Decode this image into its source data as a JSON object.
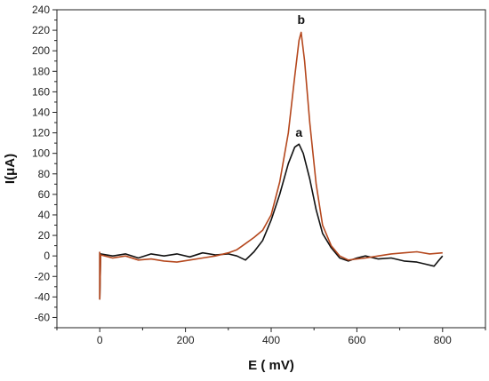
{
  "chart_data": {
    "type": "line",
    "xlabel": "E ( mV)",
    "ylabel": "I(μA)",
    "xlim": [
      -100,
      900
    ],
    "ylim": [
      -70,
      240
    ],
    "x_ticks": [
      0,
      200,
      400,
      600,
      800
    ],
    "y_ticks": [
      -60,
      -40,
      -20,
      0,
      20,
      40,
      60,
      80,
      100,
      120,
      140,
      160,
      180,
      200,
      220,
      240
    ],
    "grid": false,
    "series": [
      {
        "name": "a",
        "color": "#111111",
        "points": [
          [
            0,
            4
          ],
          [
            0,
            -42
          ],
          [
            2,
            2
          ],
          [
            30,
            0
          ],
          [
            60,
            2
          ],
          [
            90,
            -2
          ],
          [
            120,
            2
          ],
          [
            150,
            0
          ],
          [
            180,
            2
          ],
          [
            210,
            -1
          ],
          [
            240,
            3
          ],
          [
            270,
            1
          ],
          [
            300,
            2
          ],
          [
            320,
            0
          ],
          [
            340,
            -4
          ],
          [
            360,
            4
          ],
          [
            380,
            15
          ],
          [
            400,
            35
          ],
          [
            420,
            60
          ],
          [
            440,
            90
          ],
          [
            455,
            106
          ],
          [
            465,
            109
          ],
          [
            475,
            100
          ],
          [
            490,
            75
          ],
          [
            505,
            45
          ],
          [
            520,
            22
          ],
          [
            540,
            8
          ],
          [
            560,
            -2
          ],
          [
            580,
            -5
          ],
          [
            600,
            -2
          ],
          [
            620,
            0
          ],
          [
            650,
            -3
          ],
          [
            680,
            -2
          ],
          [
            710,
            -5
          ],
          [
            740,
            -6
          ],
          [
            760,
            -8
          ],
          [
            780,
            -10
          ],
          [
            790,
            -5
          ],
          [
            800,
            0
          ]
        ]
      },
      {
        "name": "b",
        "color": "#b5481e",
        "points": [
          [
            0,
            4
          ],
          [
            0,
            -42
          ],
          [
            2,
            1
          ],
          [
            30,
            -2
          ],
          [
            60,
            0
          ],
          [
            90,
            -4
          ],
          [
            120,
            -3
          ],
          [
            150,
            -5
          ],
          [
            180,
            -6
          ],
          [
            210,
            -4
          ],
          [
            240,
            -2
          ],
          [
            270,
            0
          ],
          [
            300,
            3
          ],
          [
            320,
            6
          ],
          [
            340,
            12
          ],
          [
            360,
            18
          ],
          [
            380,
            25
          ],
          [
            400,
            40
          ],
          [
            420,
            72
          ],
          [
            440,
            120
          ],
          [
            455,
            175
          ],
          [
            465,
            210
          ],
          [
            470,
            218
          ],
          [
            478,
            190
          ],
          [
            490,
            130
          ],
          [
            505,
            70
          ],
          [
            520,
            30
          ],
          [
            540,
            10
          ],
          [
            560,
            0
          ],
          [
            580,
            -4
          ],
          [
            600,
            -3
          ],
          [
            620,
            -2
          ],
          [
            650,
            0
          ],
          [
            680,
            2
          ],
          [
            710,
            3
          ],
          [
            740,
            4
          ],
          [
            770,
            2
          ],
          [
            800,
            3
          ]
        ]
      }
    ],
    "annotations": [
      {
        "text": "a",
        "x": 465,
        "y": 116
      },
      {
        "text": "b",
        "x": 470,
        "y": 226
      }
    ]
  }
}
